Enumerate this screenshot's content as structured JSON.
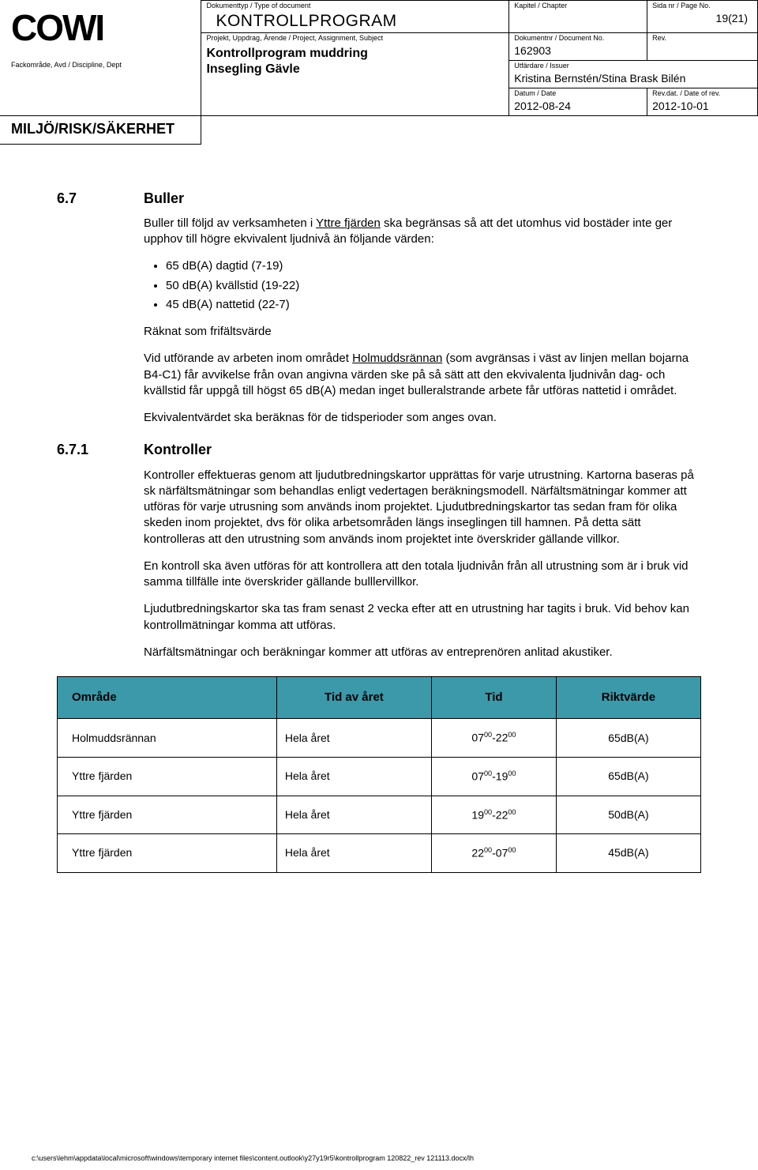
{
  "header": {
    "labels": {
      "doctype": "Dokumenttyp / Type of document",
      "chapter": "Kapitel / Chapter",
      "pageno": "Sida nr / Page No.",
      "project": "Projekt, Uppdrag, Ärende / Project, Assignment, Subject",
      "docno": "Dokumentnr / Document No.",
      "rev": "Rev.",
      "discipline": "Fackområde, Avd / Discipline, Dept",
      "issuer": "Utfärdare / Issuer",
      "date": "Datum / Date",
      "revdate": "Rev.dat. / Date of rev."
    },
    "doctype_value": "KONTROLLPROGRAM",
    "chapter_value": "",
    "pageno_value": "19(21)",
    "project_value_line1": "Kontrollprogram muddring",
    "project_value_line2": "Insegling Gävle",
    "docno_value": "162903",
    "rev_value": "",
    "issuer_value": "Kristina Bernstén/Stina Brask Bilén",
    "date_value": "2012-08-24",
    "revdate_value": "2012-10-01",
    "dept_value": "MILJÖ/RISK/SÄKERHET"
  },
  "section67": {
    "num": "6.7",
    "title": "Buller",
    "p1a": "Buller till följd av verksamheten i ",
    "p1_underline": "Yttre fjärden",
    "p1b": " ska begränsas så att det utomhus vid bostäder inte ger upphov till högre ekvivalent ljudnivå än följande värden:",
    "bullets": [
      "65 dB(A) dagtid (7-19)",
      "50 dB(A) kvällstid (19-22)",
      "45 dB(A) nattetid (22-7)"
    ],
    "p2": "Räknat som frifältsvärde",
    "p3a": "Vid utförande av arbeten inom området ",
    "p3_underline": "Holmuddsrännan",
    "p3b": " (som avgränsas i väst av linjen mellan bojarna B4-C1) får avvikelse från ovan angivna värden ske på så sätt att den ekvivalenta ljudnivån dag- och kvällstid får uppgå till högst 65 dB(A) medan inget bulleralstrande arbete får utföras nattetid i området.",
    "p4": "Ekvivalentvärdet ska beräknas för de tidsperioder som anges ovan."
  },
  "section671": {
    "num": "6.7.1",
    "title": "Kontroller",
    "p1": "Kontroller effektueras genom att ljudutbredningskartor upprättas för varje utrustning. Kartorna baseras på sk närfältsmätningar som behandlas enligt vedertagen beräkningsmodell. Närfältsmätningar kommer att utföras för varje utrusning som används inom projektet. Ljudutbredningskartor tas sedan fram för olika skeden inom projektet, dvs för olika arbetsområden längs inseglingen till hamnen. På detta sätt kontrolleras att den utrustning som används inom projektet inte överskrider gällande villkor.",
    "p2": "En kontroll ska även utföras för att kontrollera att den totala ljudnivån från all utrustning som är i bruk vid samma tillfälle inte överskrider gällande bulllervillkor.",
    "p3": "Ljudutbredningskartor ska tas fram senast 2 vecka efter att en utrustning har tagits i bruk. Vid behov kan kontrollmätningar komma att utföras.",
    "p4": "Närfältsmätningar och beräkningar kommer att utföras av entreprenören anlitad akustiker."
  },
  "table": {
    "header_bg": "#3b99aa",
    "columns": [
      "Område",
      "Tid av året",
      "Tid",
      "Riktvärde"
    ],
    "rows": [
      {
        "omrade": "Holmuddsrännan",
        "tid_av_aret": "Hela året",
        "tid_html": "07<sup>00</sup>-22<sup>00</sup>",
        "riktvarde": "65dB(A)"
      },
      {
        "omrade": "Yttre fjärden",
        "tid_av_aret": "Hela året",
        "tid_html": "07<sup>00</sup>-19<sup>00</sup>",
        "riktvarde": "65dB(A)"
      },
      {
        "omrade": "Yttre fjärden",
        "tid_av_aret": "Hela året",
        "tid_html": "19<sup>00</sup>-22<sup>00</sup>",
        "riktvarde": "50dB(A)"
      },
      {
        "omrade": "Yttre fjärden",
        "tid_av_aret": "Hela året",
        "tid_html": "22<sup>00</sup>-07<sup>00</sup>",
        "riktvarde": "45dB(A)"
      }
    ]
  },
  "footer": {
    "path": "c:\\users\\lehm\\appdata\\local\\microsoft\\windows\\temporary internet files\\content.outlook\\y27y19r5\\kontrollprogram 120822_rev 121113.docx/lh"
  }
}
